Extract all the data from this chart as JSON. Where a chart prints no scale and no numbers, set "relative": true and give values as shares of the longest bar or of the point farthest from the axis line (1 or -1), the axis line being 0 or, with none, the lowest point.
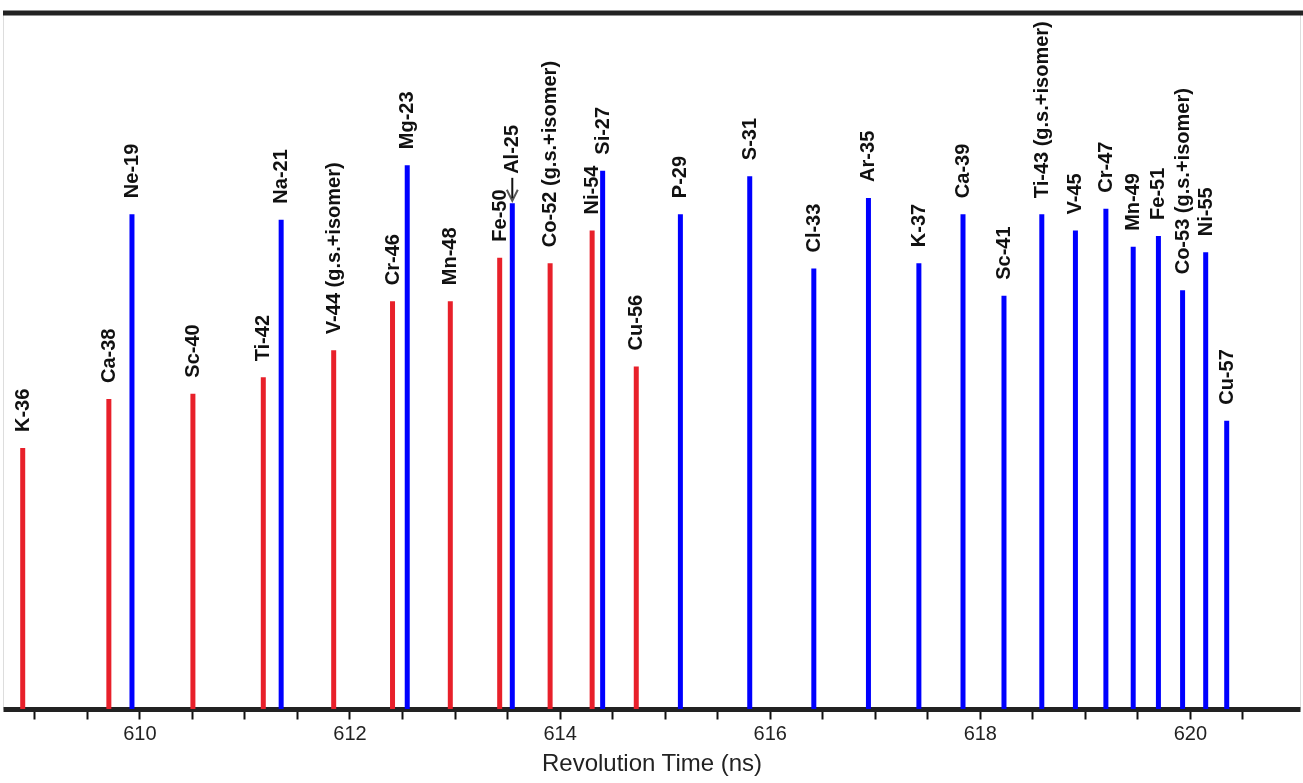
{
  "chart_data": {
    "type": "bar",
    "relative": true,
    "xlabel": "Revolution Time (ns)",
    "xlim": [
      608.75,
      621.0
    ],
    "xticks": [
      {
        "value": 609,
        "label": null
      },
      {
        "value": 609.5,
        "label": null
      },
      610,
      {
        "value": 610.5,
        "label": null
      },
      {
        "value": 611,
        "label": null
      },
      {
        "value": 611.5,
        "label": null
      },
      612,
      {
        "value": 612.5,
        "label": null
      },
      {
        "value": 613,
        "label": null
      },
      {
        "value": 613.5,
        "label": null
      },
      614,
      {
        "value": 614.5,
        "label": null
      },
      {
        "value": 615,
        "label": null
      },
      {
        "value": 615.5,
        "label": null
      },
      616,
      {
        "value": 616.5,
        "label": null
      },
      {
        "value": 617,
        "label": null
      },
      {
        "value": 617.5,
        "label": null
      },
      618,
      {
        "value": 618.5,
        "label": null
      },
      {
        "value": 619,
        "label": null
      },
      {
        "value": 619.5,
        "label": null
      },
      620,
      {
        "value": 620.5,
        "label": null
      }
    ],
    "grid": false,
    "series": [
      {
        "color": "#e8202a",
        "x": [
          608.89,
          609.71,
          610.51,
          611.18,
          611.85,
          612.41,
          612.96,
          613.43,
          613.91,
          614.31,
          614.73
        ],
        "values": [
          0.48,
          0.57,
          0.58,
          0.61,
          0.66,
          0.75,
          0.75,
          0.83,
          0.82,
          0.88,
          0.63
        ]
      },
      {
        "color": "#0000ff",
        "x": [
          609.93,
          611.35,
          612.55,
          613.55,
          614.41,
          615.15,
          615.81,
          616.42,
          616.94,
          617.42,
          617.84,
          618.23,
          618.59,
          618.91,
          619.2,
          619.46,
          619.7,
          619.93,
          620.15,
          620.35
        ],
        "values": [
          0.91,
          0.9,
          1.0,
          0.93,
          0.99,
          0.91,
          0.98,
          0.81,
          0.94,
          0.82,
          0.91,
          0.76,
          0.91,
          0.88,
          0.92,
          0.85,
          0.87,
          0.77,
          0.84,
          0.53
        ]
      }
    ],
    "annotations": [
      {
        "text": "K-36",
        "x": 608.89,
        "y": 0.48
      },
      {
        "text": "Ca-38",
        "x": 609.71,
        "y": 0.57
      },
      {
        "text": "Ne-19",
        "x": 609.93,
        "y": 0.91
      },
      {
        "text": "Sc-40",
        "x": 610.51,
        "y": 0.58
      },
      {
        "text": "Ti-42",
        "x": 611.18,
        "y": 0.61
      },
      {
        "text": "Na-21",
        "x": 611.35,
        "y": 0.9
      },
      {
        "text": "V-44 (g.s.+isomer)",
        "x": 611.85,
        "y": 0.66
      },
      {
        "text": "Cr-46",
        "x": 612.41,
        "y": 0.75
      },
      {
        "text": "Mg-23",
        "x": 612.55,
        "y": 1.0
      },
      {
        "text": "Mn-48",
        "x": 612.96,
        "y": 0.75
      },
      {
        "text": "Fe-50",
        "x": 613.43,
        "y": 0.83
      },
      {
        "text": "Al-25",
        "x": 613.55,
        "y": 0.93
      },
      {
        "text": "Co-52 (g.s.+isomer)",
        "x": 613.91,
        "y": 0.82
      },
      {
        "text": "Ni-54",
        "x": 614.31,
        "y": 0.88
      },
      {
        "text": "Si-27",
        "x": 614.41,
        "y": 0.99
      },
      {
        "text": "Cu-56",
        "x": 614.73,
        "y": 0.63
      },
      {
        "text": "P-29",
        "x": 615.15,
        "y": 0.91
      },
      {
        "text": "S-31",
        "x": 615.81,
        "y": 0.98
      },
      {
        "text": "Cl-33",
        "x": 616.42,
        "y": 0.81
      },
      {
        "text": "Ar-35",
        "x": 616.94,
        "y": 0.94
      },
      {
        "text": "K-37",
        "x": 617.42,
        "y": 0.82
      },
      {
        "text": "Ca-39",
        "x": 617.84,
        "y": 0.91
      },
      {
        "text": "Sc-41",
        "x": 618.23,
        "y": 0.76
      },
      {
        "text": "Ti-43 (g.s.+isomer)",
        "x": 618.59,
        "y": 0.91
      },
      {
        "text": "V-45",
        "x": 618.91,
        "y": 0.88
      },
      {
        "text": "Cr-47",
        "x": 619.2,
        "y": 0.92
      },
      {
        "text": "Mn-49",
        "x": 619.46,
        "y": 0.85
      },
      {
        "text": "Fe-51",
        "x": 619.7,
        "y": 0.87
      },
      {
        "text": "Co-53 (g.s.+isomer)",
        "x": 619.93,
        "y": 0.77
      },
      {
        "text": "Ni-55",
        "x": 620.15,
        "y": 0.84
      },
      {
        "text": "Cu-57",
        "x": 620.35,
        "y": 0.53
      }
    ]
  }
}
